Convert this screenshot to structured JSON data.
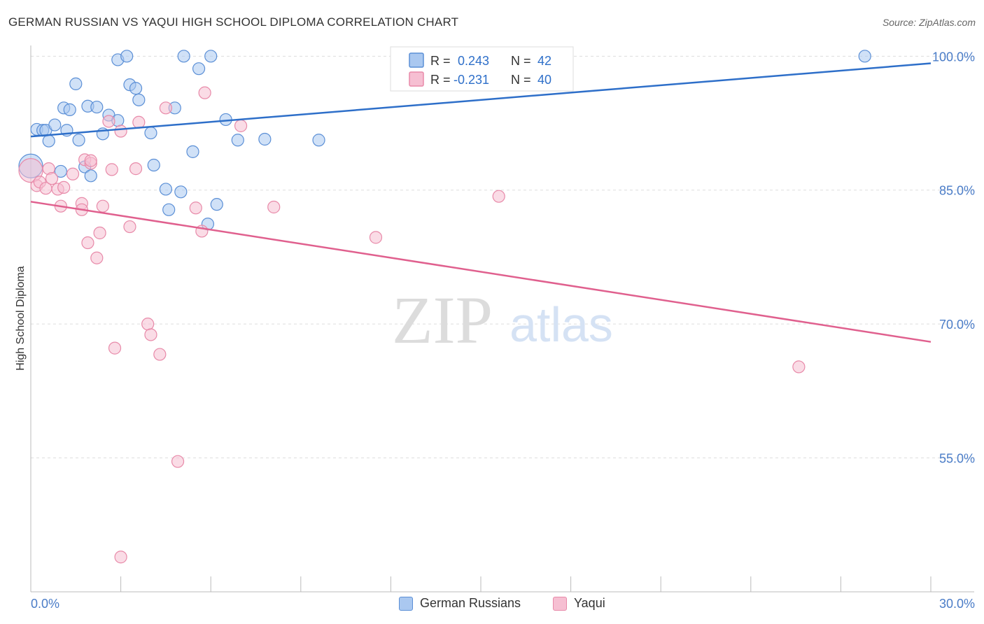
{
  "title": "GERMAN RUSSIAN VS YAQUI HIGH SCHOOL DIPLOMA CORRELATION CHART",
  "source": "Source: ZipAtlas.com",
  "watermark": {
    "zip": "ZIP",
    "atlas": "atlas"
  },
  "colors": {
    "blue_fill": "#aac8f0",
    "blue_stroke": "#5b8fd6",
    "blue_line": "#2e6fc9",
    "pink_fill": "#f6bfd2",
    "pink_stroke": "#e88aa9",
    "pink_line": "#e0608e",
    "tick_label": "#4a7cc7",
    "grid": "#dddddd"
  },
  "legend": {
    "blue": {
      "r_label": "R =",
      "r_value": "0.243",
      "n_label": "N =",
      "n_value": "42"
    },
    "pink": {
      "r_label": "R =",
      "r_value": "-0.231",
      "n_label": "N =",
      "n_value": "40"
    }
  },
  "bottom_legend": {
    "blue": "German Russians",
    "pink": "Yaqui"
  },
  "chart_data": {
    "type": "scatter",
    "title": "GERMAN RUSSIAN VS YAQUI HIGH SCHOOL DIPLOMA CORRELATION CHART",
    "xlabel": "",
    "ylabel": "High School Diploma",
    "xlim": [
      0,
      30
    ],
    "ylim": [
      40,
      101.2
    ],
    "x_tick_labels": [
      "0.0%",
      "30.0%"
    ],
    "y_ticks": [
      100,
      85,
      70,
      55
    ],
    "y_tick_labels": [
      "100.0%",
      "85.0%",
      "70.0%",
      "55.0%"
    ],
    "grid": true,
    "legend_position": "top-center",
    "series": [
      {
        "name": "German Russians",
        "color": "#5b8fd6",
        "trend": {
          "x": [
            0,
            30
          ],
          "y": [
            91.0,
            99.2
          ]
        },
        "points": [
          {
            "x": 0.0,
            "y": 87.7,
            "big": true
          },
          {
            "x": 0.2,
            "y": 91.8
          },
          {
            "x": 0.4,
            "y": 91.7
          },
          {
            "x": 0.5,
            "y": 91.7
          },
          {
            "x": 0.6,
            "y": 90.5
          },
          {
            "x": 0.8,
            "y": 92.3
          },
          {
            "x": 1.0,
            "y": 87.1
          },
          {
            "x": 1.1,
            "y": 94.2
          },
          {
            "x": 1.2,
            "y": 91.7
          },
          {
            "x": 1.3,
            "y": 94.0
          },
          {
            "x": 1.5,
            "y": 96.9
          },
          {
            "x": 1.6,
            "y": 90.6
          },
          {
            "x": 1.8,
            "y": 87.6
          },
          {
            "x": 1.9,
            "y": 94.4
          },
          {
            "x": 2.0,
            "y": 86.6
          },
          {
            "x": 2.2,
            "y": 94.3
          },
          {
            "x": 2.4,
            "y": 91.3
          },
          {
            "x": 2.6,
            "y": 93.4
          },
          {
            "x": 2.9,
            "y": 92.8
          },
          {
            "x": 2.9,
            "y": 99.6
          },
          {
            "x": 3.2,
            "y": 100.0
          },
          {
            "x": 3.3,
            "y": 96.8
          },
          {
            "x": 3.5,
            "y": 96.4
          },
          {
            "x": 3.6,
            "y": 95.1
          },
          {
            "x": 4.0,
            "y": 91.4
          },
          {
            "x": 4.1,
            "y": 87.8
          },
          {
            "x": 4.5,
            "y": 85.1
          },
          {
            "x": 4.6,
            "y": 82.8
          },
          {
            "x": 4.8,
            "y": 94.2
          },
          {
            "x": 5.0,
            "y": 84.8
          },
          {
            "x": 5.1,
            "y": 100.0
          },
          {
            "x": 5.4,
            "y": 89.3
          },
          {
            "x": 5.6,
            "y": 98.6
          },
          {
            "x": 5.9,
            "y": 81.2
          },
          {
            "x": 6.0,
            "y": 100.0
          },
          {
            "x": 6.2,
            "y": 83.4
          },
          {
            "x": 6.5,
            "y": 92.9
          },
          {
            "x": 6.9,
            "y": 90.6
          },
          {
            "x": 7.8,
            "y": 90.7
          },
          {
            "x": 9.6,
            "y": 90.6
          },
          {
            "x": 12.5,
            "y": 100.0
          },
          {
            "x": 27.8,
            "y": 100.0
          }
        ]
      },
      {
        "name": "Yaqui",
        "color": "#e88aa9",
        "trend": {
          "x": [
            0,
            30
          ],
          "y": [
            83.7,
            68.0
          ]
        },
        "points": [
          {
            "x": 0.0,
            "y": 87.2,
            "big": true
          },
          {
            "x": 0.2,
            "y": 85.5
          },
          {
            "x": 0.3,
            "y": 85.9
          },
          {
            "x": 0.5,
            "y": 85.2
          },
          {
            "x": 0.6,
            "y": 87.4
          },
          {
            "x": 0.7,
            "y": 86.3
          },
          {
            "x": 0.9,
            "y": 85.1
          },
          {
            "x": 1.0,
            "y": 83.2
          },
          {
            "x": 1.1,
            "y": 85.3
          },
          {
            "x": 1.4,
            "y": 86.8
          },
          {
            "x": 1.7,
            "y": 83.5
          },
          {
            "x": 1.7,
            "y": 82.8
          },
          {
            "x": 1.8,
            "y": 88.4
          },
          {
            "x": 1.9,
            "y": 79.1
          },
          {
            "x": 2.0,
            "y": 88.0
          },
          {
            "x": 2.0,
            "y": 88.3
          },
          {
            "x": 2.2,
            "y": 77.4
          },
          {
            "x": 2.3,
            "y": 80.2
          },
          {
            "x": 2.4,
            "y": 83.2
          },
          {
            "x": 2.6,
            "y": 92.7
          },
          {
            "x": 2.7,
            "y": 87.3
          },
          {
            "x": 2.8,
            "y": 67.3
          },
          {
            "x": 3.0,
            "y": 91.6
          },
          {
            "x": 3.0,
            "y": 43.9
          },
          {
            "x": 3.3,
            "y": 80.9
          },
          {
            "x": 3.5,
            "y": 87.4
          },
          {
            "x": 3.6,
            "y": 92.6
          },
          {
            "x": 3.9,
            "y": 70.0
          },
          {
            "x": 4.0,
            "y": 68.8
          },
          {
            "x": 4.3,
            "y": 66.6
          },
          {
            "x": 4.5,
            "y": 94.2
          },
          {
            "x": 4.9,
            "y": 54.6
          },
          {
            "x": 5.5,
            "y": 83.0
          },
          {
            "x": 5.7,
            "y": 80.4
          },
          {
            "x": 5.8,
            "y": 95.9
          },
          {
            "x": 7.0,
            "y": 92.2
          },
          {
            "x": 8.1,
            "y": 83.1
          },
          {
            "x": 11.5,
            "y": 79.7
          },
          {
            "x": 15.6,
            "y": 84.3
          },
          {
            "x": 25.6,
            "y": 65.2
          }
        ]
      }
    ]
  }
}
